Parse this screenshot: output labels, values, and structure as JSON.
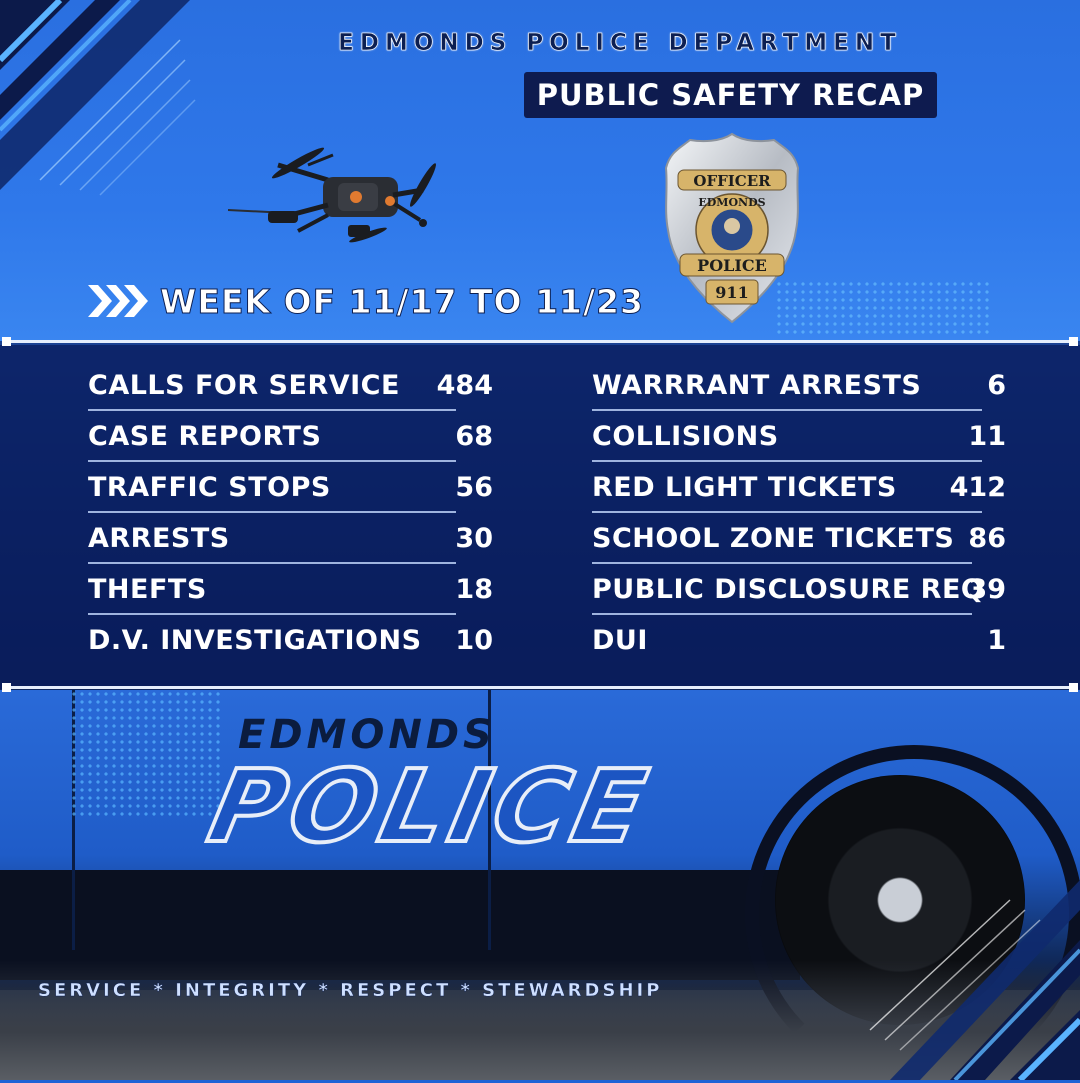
{
  "header": {
    "department": "EDMONDS POLICE DEPARTMENT",
    "banner": "PUBLIC SAFETY RECAP"
  },
  "badge": {
    "top_text": "OFFICER",
    "city_text": "EDMONDS",
    "bottom_text": "POLICE",
    "number": "911"
  },
  "week": {
    "label": "WEEK OF 11/17 TO 11/23"
  },
  "stats": {
    "left": [
      {
        "label": "CALLS FOR SERVICE",
        "value": "484"
      },
      {
        "label": "CASE REPORTS",
        "value": "68"
      },
      {
        "label": "TRAFFIC STOPS",
        "value": "56"
      },
      {
        "label": "ARRESTS",
        "value": "30"
      },
      {
        "label": "THEFTS",
        "value": "18"
      },
      {
        "label": "D.V. INVESTIGATIONS",
        "value": "10"
      }
    ],
    "right": [
      {
        "label": "WARRRANT ARRESTS",
        "value": "6"
      },
      {
        "label": "COLLISIONS",
        "value": "11"
      },
      {
        "label": "RED LIGHT TICKETS",
        "value": "412"
      },
      {
        "label": "SCHOOL ZONE TICKETS",
        "value": "86"
      },
      {
        "label": "PUBLIC DISCLOSURE REQ",
        "value": "39"
      },
      {
        "label": "DUI",
        "value": "1"
      }
    ]
  },
  "car": {
    "small_text": "EDMONDS",
    "big_text": "POLICE"
  },
  "footer": {
    "motto": "SERVICE * INTEGRITY * RESPECT * STEWARDSHIP"
  },
  "colors": {
    "navy": "#0e1b4f",
    "sky_blue": "#2f78ea",
    "white": "#ffffff"
  }
}
